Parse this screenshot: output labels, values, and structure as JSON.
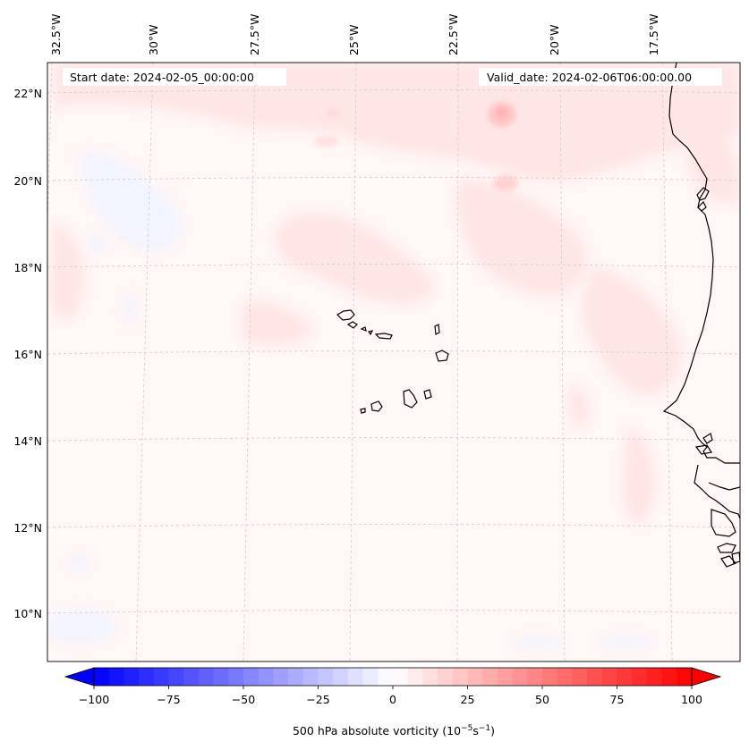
{
  "header": {
    "start_date": "Start date: 2024-02-05_00:00:00",
    "valid_date": "Valid_date: 2024-02-06T06:00:00.00"
  },
  "map": {
    "projection": "conic",
    "longitude_labels": [
      "32.5°W",
      "30°W",
      "27.5°W",
      "25°W",
      "22.5°W",
      "20°W",
      "17.5°W"
    ],
    "latitude_labels": [
      "22°N",
      "20°N",
      "18°N",
      "16°N",
      "14°N",
      "12°N",
      "10°N"
    ],
    "colors": {
      "coastline": "#000000",
      "gridline": "#bbbbbb",
      "background": "#fff6f6",
      "positive_patch": "#ffe4e4",
      "positive_strong": "#ffc9c9",
      "negative_patch": "#f3f5ff"
    }
  },
  "colorbar": {
    "label": "500 hPa absolute vorticity (10",
    "exponent": "−5",
    "unit_suffix": "s",
    "unit_exp": "−1",
    "label_close": ")",
    "vmin": -100,
    "vmax": 100,
    "levels": 40,
    "ticks": [
      "−100",
      "−75",
      "−50",
      "−25",
      "0",
      "25",
      "50",
      "75",
      "100"
    ],
    "tick_values": [
      -100,
      -75,
      -50,
      -25,
      0,
      25,
      50,
      75,
      100
    ],
    "cmap": "bwr"
  }
}
